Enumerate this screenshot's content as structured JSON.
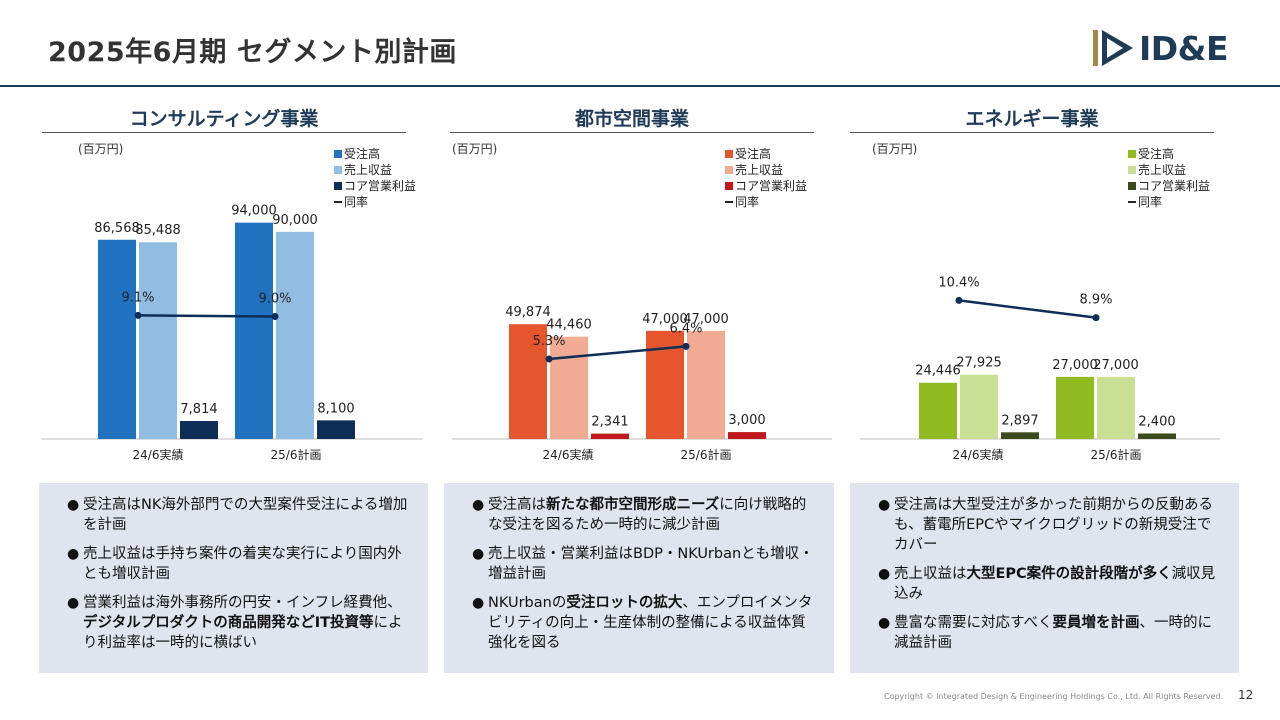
{
  "header": {
    "title": "2025年6月期 セグメント別計画",
    "logo_text": "ID&E"
  },
  "unit": "(百万円)",
  "legend_labels": [
    "受注高",
    "売上収益",
    "コア営業利益",
    "同率"
  ],
  "chart_data": [
    {
      "type": "bar",
      "title": "コンサルティング事業",
      "categories": [
        "24/6実績",
        "25/6計画"
      ],
      "series": [
        {
          "name": "受注高",
          "values": [
            86568,
            94000
          ],
          "color": "#2173c2"
        },
        {
          "name": "売上収益",
          "values": [
            85488,
            90000
          ],
          "color": "#92bde3"
        },
        {
          "name": "コア営業利益",
          "values": [
            7814,
            8100
          ],
          "color": "#0e2d57"
        }
      ],
      "rate": {
        "name": "同率",
        "values": [
          9.1,
          9.0
        ],
        "labels": [
          "9.1%",
          "9.0%"
        ],
        "color": "#0e2d57"
      },
      "value_labels": [
        [
          "86,568",
          "94,000"
        ],
        [
          "85,488",
          "90,000"
        ],
        [
          "7,814",
          "8,100"
        ]
      ],
      "ylim": [
        0,
        100000
      ]
    },
    {
      "type": "bar",
      "title": "都市空間事業",
      "categories": [
        "24/6実績",
        "25/6計画"
      ],
      "series": [
        {
          "name": "受注高",
          "values": [
            49874,
            47000
          ],
          "color": "#e5552e"
        },
        {
          "name": "売上収益",
          "values": [
            44460,
            47000
          ],
          "color": "#f2ab93"
        },
        {
          "name": "コア営業利益",
          "values": [
            2341,
            3000
          ],
          "color": "#c0161c"
        }
      ],
      "rate": {
        "name": "同率",
        "values": [
          5.3,
          6.4
        ],
        "labels": [
          "5.3%",
          "6.4%"
        ],
        "color": "#0e2d57"
      },
      "value_labels": [
        [
          "49,874",
          "47,000"
        ],
        [
          "44,460",
          "47,000"
        ],
        [
          "2,341",
          "3,000"
        ]
      ],
      "ylim": [
        0,
        100000
      ]
    },
    {
      "type": "bar",
      "title": "エネルギー事業",
      "categories": [
        "24/6実績",
        "25/6計画"
      ],
      "series": [
        {
          "name": "受注高",
          "values": [
            24446,
            27000
          ],
          "color": "#8fbb21"
        },
        {
          "name": "売上収益",
          "values": [
            27925,
            27000
          ],
          "color": "#c9df94"
        },
        {
          "name": "コア営業利益",
          "values": [
            2897,
            2400
          ],
          "color": "#3a4a1d"
        }
      ],
      "rate": {
        "name": "同率",
        "values": [
          10.4,
          8.9
        ],
        "labels": [
          "10.4%",
          "8.9%"
        ],
        "color": "#0e2d57"
      },
      "value_labels": [
        [
          "24,446",
          "27,000"
        ],
        [
          "27,925",
          "27,000"
        ],
        [
          "2,897",
          "2,400"
        ]
      ],
      "ylim": [
        0,
        100000
      ]
    }
  ],
  "notes": [
    [
      [
        {
          "t": "受注高はNK海外部門での大型案件受注による増加を計画"
        }
      ],
      [
        {
          "t": "売上収益は手持ち案件の着実な実行により国内外とも増収計画"
        }
      ],
      [
        {
          "t": "営業利益は海外事務所の円安・インフレ経費他、"
        },
        {
          "t": "デジタルプロダクトの商品開発などIT投資等",
          "b": true
        },
        {
          "t": "により利益率は一時的に横ばい"
        }
      ]
    ],
    [
      [
        {
          "t": "受注高は"
        },
        {
          "t": "新たな都市空間形成ニーズ",
          "b": true
        },
        {
          "t": "に向け戦略的な受注を図るため一時的に減少計画"
        }
      ],
      [
        {
          "t": "売上収益・営業利益はBDP・NKUrbanとも増収・増益計画"
        }
      ],
      [
        {
          "t": "NKUrbanの"
        },
        {
          "t": "受注ロットの拡大",
          "b": true
        },
        {
          "t": "、エンプロイメンタビリティの向上・生産体制の整備による収益体質強化を図る"
        }
      ]
    ],
    [
      [
        {
          "t": "受注高は大型受注が多かった前期からの反動あるも、蓄電所EPCやマイクログリッドの新規受注でカバー"
        }
      ],
      [
        {
          "t": "売上収益は"
        },
        {
          "t": "大型EPC案件の設計段階が多く",
          "b": true
        },
        {
          "t": "減収見込み"
        }
      ],
      [
        {
          "t": "豊富な需要に対応すべく"
        },
        {
          "t": "要員増を計画",
          "b": true
        },
        {
          "t": "、一時的に減益計画"
        }
      ]
    ]
  ],
  "bullet_symbol": "●",
  "footer": {
    "copyright": "Copyright © Integrated Design & Engineering Holdings Co., Ltd.  All Rights Reserved.",
    "page": "12"
  }
}
